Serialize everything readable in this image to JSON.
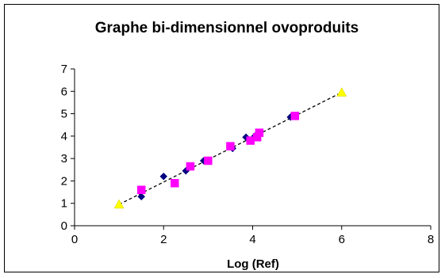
{
  "chart_data": {
    "type": "scatter",
    "title": "Graphe bi-dimensionnel ovoproduits",
    "xlabel": "Log (Ref)",
    "ylabel": "",
    "xlim": [
      0,
      8
    ],
    "ylim": [
      0,
      7
    ],
    "x_ticks": [
      "0",
      "2",
      "4",
      "6",
      "8"
    ],
    "y_ticks": [
      "0",
      "1",
      "2",
      "3",
      "4",
      "5",
      "6",
      "7"
    ],
    "grid": false,
    "legend": "none",
    "series": [
      {
        "marker": "diamond",
        "color": "#000080",
        "points": [
          [
            1.5,
            1.3
          ],
          [
            2.0,
            2.2
          ],
          [
            2.5,
            2.45
          ],
          [
            2.9,
            2.9
          ],
          [
            3.55,
            3.45
          ],
          [
            3.85,
            3.95
          ],
          [
            4.05,
            4.0
          ],
          [
            4.85,
            4.85
          ]
        ]
      },
      {
        "marker": "square",
        "color": "#ff00ff",
        "points": [
          [
            1.5,
            1.6
          ],
          [
            2.25,
            1.9
          ],
          [
            2.6,
            2.65
          ],
          [
            3.0,
            2.9
          ],
          [
            3.5,
            3.55
          ],
          [
            3.95,
            3.8
          ],
          [
            4.1,
            3.95
          ],
          [
            4.15,
            4.15
          ],
          [
            4.95,
            4.9
          ]
        ]
      },
      {
        "marker": "triangle",
        "color": "#ffff00",
        "points": [
          [
            1.0,
            0.95
          ],
          [
            6.0,
            5.95
          ]
        ]
      }
    ],
    "trendline": {
      "style": "dashed",
      "color": "#000000",
      "from": [
        1.0,
        0.95
      ],
      "to": [
        6.0,
        5.95
      ]
    }
  }
}
